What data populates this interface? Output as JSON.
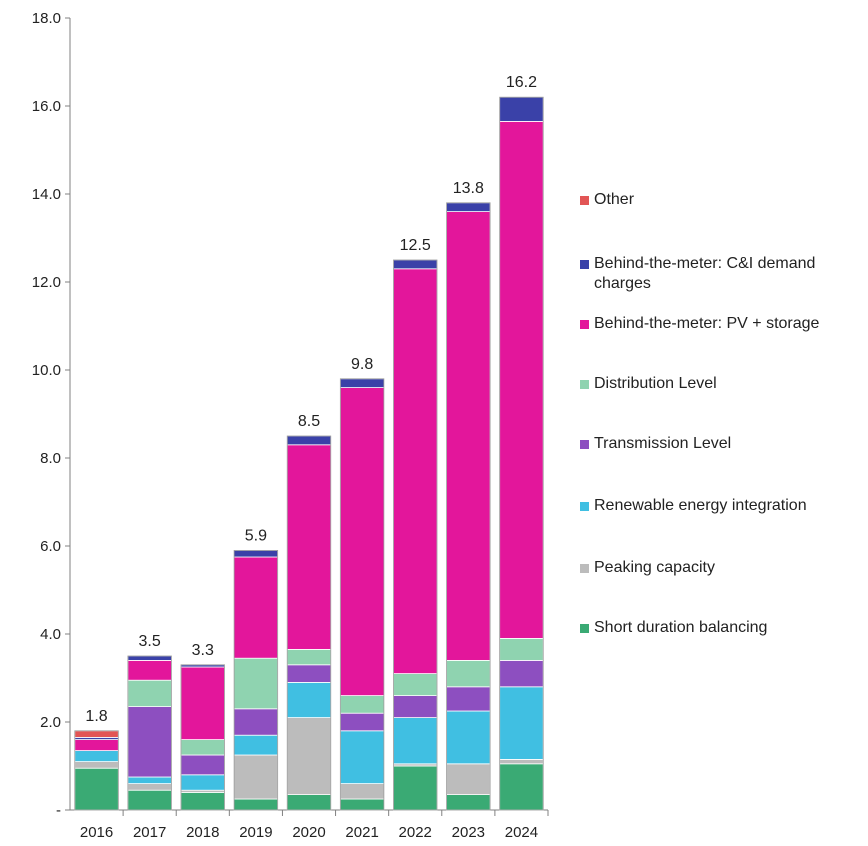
{
  "chart_data": {
    "type": "bar",
    "stacked": true,
    "title": "",
    "xlabel": "",
    "ylabel": "",
    "ylim": [
      0,
      18
    ],
    "y_ticks": [
      "-",
      "2.0",
      "4.0",
      "6.0",
      "8.0",
      "10.0",
      "12.0",
      "14.0",
      "16.0",
      "18.0"
    ],
    "grid": false,
    "legend_position": "right",
    "categories": [
      "2016",
      "2017",
      "2018",
      "2019",
      "2020",
      "2021",
      "2022",
      "2023",
      "2024"
    ],
    "totals": [
      1.8,
      3.5,
      3.3,
      5.9,
      8.5,
      9.8,
      12.5,
      13.8,
      16.2
    ],
    "total_labels": [
      "1.8",
      "3.5",
      "3.3",
      "5.9",
      "8.5",
      "9.8",
      "12.5",
      "13.8",
      "16.2"
    ],
    "series": [
      {
        "name": "Short duration balancing",
        "color": "#3aaa74",
        "values": [
          0.95,
          0.45,
          0.4,
          0.25,
          0.35,
          0.25,
          1.0,
          0.35,
          1.05
        ]
      },
      {
        "name": "Peaking capacity",
        "color": "#bcbcbc",
        "values": [
          0.15,
          0.15,
          0.05,
          1.0,
          1.75,
          0.35,
          0.05,
          0.7,
          0.1
        ]
      },
      {
        "name": "Renewable energy integration",
        "color": "#40bfe2",
        "values": [
          0.25,
          0.15,
          0.35,
          0.45,
          0.8,
          1.2,
          1.05,
          1.2,
          1.65
        ]
      },
      {
        "name": "Transmission Level",
        "color": "#8d4fc0",
        "values": [
          0.0,
          1.6,
          0.45,
          0.6,
          0.4,
          0.4,
          0.5,
          0.55,
          0.6
        ]
      },
      {
        "name": "Distribution Level",
        "color": "#8fd3b0",
        "values": [
          0.0,
          0.6,
          0.35,
          1.15,
          0.35,
          0.4,
          0.5,
          0.6,
          0.5
        ]
      },
      {
        "name": "Behind-the-meter: PV + storage",
        "color": "#e3169b",
        "values": [
          0.25,
          0.45,
          1.65,
          2.3,
          4.65,
          7.0,
          9.2,
          10.2,
          11.75
        ]
      },
      {
        "name": "Behind-the-meter: C&I demand charges",
        "color": "#3a41a8",
        "values": [
          0.05,
          0.1,
          0.05,
          0.15,
          0.2,
          0.2,
          0.2,
          0.2,
          0.55
        ]
      },
      {
        "name": "Other",
        "color": "#e25555",
        "values": [
          0.15,
          0.0,
          0.0,
          0.0,
          0.0,
          0.0,
          0.0,
          0.0,
          0.0
        ]
      }
    ]
  },
  "legend": {
    "items": [
      {
        "label": "Other",
        "color": "#e25555"
      },
      {
        "label": "Behind-the-meter: C&I demand charges",
        "color": "#3a41a8"
      },
      {
        "label": "Behind-the-meter: PV + storage",
        "color": "#e3169b"
      },
      {
        "label": "Distribution Level",
        "color": "#8fd3b0"
      },
      {
        "label": "Transmission Level",
        "color": "#8d4fc0"
      },
      {
        "label": "Renewable energy integration",
        "color": "#40bfe2"
      },
      {
        "label": "Peaking capacity",
        "color": "#bcbcbc"
      },
      {
        "label": "Short duration balancing",
        "color": "#3aaa74"
      }
    ]
  }
}
